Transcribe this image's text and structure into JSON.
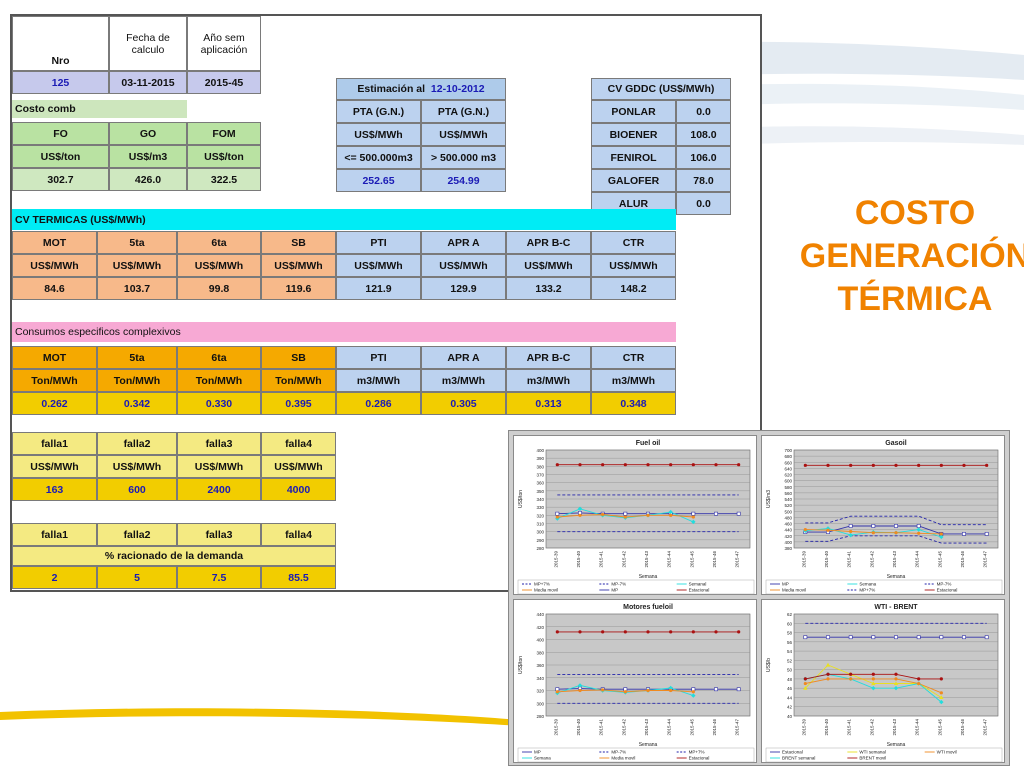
{
  "title": {
    "line1": "COSTO",
    "line2": "GENERACIÓN",
    "line3": "TÉRMICA"
  },
  "header": {
    "nro_label": "Nro",
    "fecha_label": "Fecha de calculo",
    "anio_label": "Año sem aplicación",
    "nro": "125",
    "fecha": "03-11-2015",
    "anio": "2015-45"
  },
  "costo_comb": {
    "label": "Costo comb",
    "headers": [
      "FO",
      "GO",
      "FOM"
    ],
    "units": [
      "US$/ton",
      "US$/m3",
      "US$/ton"
    ],
    "values": [
      "302.7",
      "426.0",
      "322.5"
    ]
  },
  "estimacion": {
    "label": "Estimación al",
    "date": "12-10-2012",
    "headers": [
      "PTA (G.N.)",
      "PTA (G.N.)"
    ],
    "units": [
      "US$/MWh",
      "US$/MWh"
    ],
    "ranges": [
      "<= 500.000m3",
      "> 500.000 m3"
    ],
    "values": [
      "252.65",
      "254.99"
    ]
  },
  "cv_gddc": {
    "label": "CV GDDC (US$/MWh)",
    "rows": [
      {
        "name": "PONLAR",
        "value": "0.0"
      },
      {
        "name": "BIOENER",
        "value": "108.0"
      },
      {
        "name": "FENIROL",
        "value": "106.0"
      },
      {
        "name": "GALOFER",
        "value": "78.0"
      },
      {
        "name": "ALUR",
        "value": "0.0"
      }
    ]
  },
  "cv_termicas": {
    "label": "CV TERMICAS (US$/MWh)",
    "headers": [
      "MOT",
      "5ta",
      "6ta",
      "SB",
      "PTI",
      "APR A",
      "APR B-C",
      "CTR"
    ],
    "units": [
      "US$/MWh",
      "US$/MWh",
      "US$/MWh",
      "US$/MWh",
      "US$/MWh",
      "US$/MWh",
      "US$/MWh",
      "US$/MWh"
    ],
    "values": [
      "84.6",
      "103.7",
      "99.8",
      "119.6",
      "121.9",
      "129.9",
      "133.2",
      "148.2"
    ]
  },
  "consumos": {
    "label": "Consumos especificos complexivos",
    "headers": [
      "MOT",
      "5ta",
      "6ta",
      "SB",
      "PTI",
      "APR A",
      "APR B-C",
      "CTR"
    ],
    "units": [
      "Ton/MWh",
      "Ton/MWh",
      "Ton/MWh",
      "Ton/MWh",
      "m3/MWh",
      "m3/MWh",
      "m3/MWh",
      "m3/MWh"
    ],
    "values": [
      "0.262",
      "0.342",
      "0.330",
      "0.395",
      "0.286",
      "0.305",
      "0.313",
      "0.348"
    ]
  },
  "falla_costos": {
    "headers": [
      "falla1",
      "falla2",
      "falla3",
      "falla4"
    ],
    "units": [
      "US$/MWh",
      "US$/MWh",
      "US$/MWh",
      "US$/MWh"
    ],
    "values": [
      "163",
      "600",
      "2400",
      "4000"
    ]
  },
  "falla_racionado": {
    "headers": [
      "falla1",
      "falla2",
      "falla3",
      "falla4"
    ],
    "label": "% racionado de la demanda",
    "values": [
      "2",
      "5",
      "7.5",
      "85.5"
    ]
  },
  "colors": {
    "title": "#f08200",
    "mp": "#3333aa",
    "mp_band": "#2222aa",
    "semanal": "#22dddd",
    "media_movil": "#f08a20",
    "estacional": "#aa1111",
    "wti_semanal": "#e8e020"
  },
  "chart_data": [
    {
      "type": "line",
      "title": "Fuel oil",
      "ylabel": "US$/ton",
      "xlabel": "Semana",
      "categories": [
        "2015-39",
        "2015-40",
        "2015-41",
        "2015-42",
        "2015-43",
        "2015-44",
        "2015-45",
        "2015-46",
        "2015-47"
      ],
      "ylim": [
        280,
        400
      ],
      "yticks": [
        280,
        290,
        300,
        310,
        320,
        330,
        340,
        350,
        360,
        370,
        380,
        390,
        400
      ],
      "grid": true,
      "series": [
        {
          "name": "MP",
          "color": "#3333aa",
          "style": "solid-square",
          "values": [
            322,
            323,
            322,
            322,
            322,
            322,
            322,
            322,
            322
          ]
        },
        {
          "name": "MP-7%",
          "color": "#2222aa",
          "style": "dashed",
          "values": [
            300,
            300,
            300,
            300,
            300,
            300,
            300,
            300,
            300
          ]
        },
        {
          "name": "MP+7%",
          "color": "#2222aa",
          "style": "dashed",
          "values": [
            345,
            345,
            345,
            345,
            345,
            345,
            345,
            345,
            345
          ]
        },
        {
          "name": "Semanal",
          "color": "#22dddd",
          "style": "solid-diamond",
          "values": [
            316,
            328,
            320,
            317,
            320,
            324,
            312,
            null,
            null
          ]
        },
        {
          "name": "Media movil",
          "color": "#f08a20",
          "style": "solid-dot",
          "values": [
            318,
            320,
            321,
            318,
            320,
            320,
            318,
            null,
            null
          ]
        },
        {
          "name": "Estacional",
          "color": "#aa1111",
          "style": "solid-dot",
          "values": [
            382,
            382,
            382,
            382,
            382,
            382,
            382,
            382,
            382
          ]
        }
      ],
      "legend": "bottom",
      "legend_entries": [
        "MP+7%",
        "MP-7%",
        "Semanal",
        "Media movil",
        "MP",
        "Estacional"
      ]
    },
    {
      "type": "line",
      "title": "Gasoil",
      "ylabel": "US$/m3",
      "xlabel": "Semana",
      "categories": [
        "2015-39",
        "2015-40",
        "2015-41",
        "2015-42",
        "2015-43",
        "2015-44",
        "2015-45",
        "2015-46",
        "2015-47"
      ],
      "ylim": [
        380,
        700
      ],
      "yticks": [
        380,
        400,
        420,
        440,
        460,
        480,
        500,
        520,
        540,
        560,
        580,
        600,
        620,
        640,
        660,
        680,
        700
      ],
      "grid": true,
      "series": [
        {
          "name": "MP",
          "color": "#3333aa",
          "style": "solid-square",
          "values": [
            432,
            432,
            452,
            452,
            452,
            452,
            426,
            426,
            426
          ]
        },
        {
          "name": "MP-7%",
          "color": "#2222aa",
          "style": "dashed",
          "values": [
            402,
            402,
            420,
            420,
            420,
            420,
            396,
            396,
            396
          ]
        },
        {
          "name": "MP+7%",
          "color": "#2222aa",
          "style": "dashed",
          "values": [
            462,
            462,
            484,
            484,
            484,
            484,
            456,
            456,
            456
          ]
        },
        {
          "name": "Semana",
          "color": "#22dddd",
          "style": "solid-diamond",
          "values": [
            436,
            444,
            422,
            432,
            430,
            440,
            416,
            null,
            null
          ]
        },
        {
          "name": "Media movil",
          "color": "#f08a20",
          "style": "solid-dot",
          "values": [
            440,
            438,
            434,
            430,
            430,
            428,
            426,
            null,
            null
          ]
        },
        {
          "name": "Estacional",
          "color": "#aa1111",
          "style": "solid-dot",
          "values": [
            650,
            650,
            650,
            650,
            650,
            650,
            650,
            650,
            650
          ]
        }
      ],
      "legend": "bottom",
      "legend_entries": [
        "MP",
        "Semana",
        "MP-7%",
        "Media movil",
        "MP+7%",
        "Estacional"
      ]
    },
    {
      "type": "line",
      "title": "Motores fueloil",
      "ylabel": "US$/ton",
      "xlabel": "Semana",
      "categories": [
        "2015-39",
        "2015-40",
        "2015-41",
        "2015-42",
        "2015-43",
        "2015-44",
        "2015-45",
        "2015-46",
        "2015-47"
      ],
      "ylim": [
        280,
        440
      ],
      "yticks": [
        280,
        300,
        320,
        340,
        360,
        380,
        400,
        420,
        440
      ],
      "grid": true,
      "series": [
        {
          "name": "MP",
          "color": "#3333aa",
          "style": "solid-square",
          "values": [
            322,
            323,
            322,
            322,
            322,
            322,
            322,
            322,
            322
          ]
        },
        {
          "name": "MP-7%",
          "color": "#2222aa",
          "style": "dashed",
          "values": [
            300,
            300,
            300,
            300,
            300,
            300,
            300,
            300,
            300
          ]
        },
        {
          "name": "MP+7%",
          "color": "#2222aa",
          "style": "dashed",
          "values": [
            345,
            345,
            345,
            345,
            345,
            345,
            345,
            345,
            345
          ]
        },
        {
          "name": "Semana",
          "color": "#22dddd",
          "style": "solid-diamond",
          "values": [
            316,
            328,
            320,
            317,
            320,
            324,
            312,
            null,
            null
          ]
        },
        {
          "name": "Media movil",
          "color": "#f08a20",
          "style": "solid-dot",
          "values": [
            318,
            320,
            321,
            318,
            320,
            320,
            318,
            null,
            null
          ]
        },
        {
          "name": "Estacional",
          "color": "#aa1111",
          "style": "solid-dot",
          "values": [
            412,
            412,
            412,
            412,
            412,
            412,
            412,
            412,
            412
          ]
        }
      ],
      "legend": "bottom",
      "legend_entries": [
        "MP",
        "MP-7%",
        "MP+7%",
        "Semana",
        "Media movil",
        "Estacional"
      ]
    },
    {
      "type": "line",
      "title": "WTI - BRENT",
      "ylabel": "US$/b",
      "xlabel": "Semana",
      "categories": [
        "2015-39",
        "2015-40",
        "2015-41",
        "2015-42",
        "2015-43",
        "2015-44",
        "2015-45",
        "2015-46",
        "2015-47"
      ],
      "ylim": [
        40,
        62
      ],
      "yticks": [
        40,
        42,
        44,
        46,
        48,
        50,
        52,
        54,
        56,
        58,
        60,
        62
      ],
      "grid": true,
      "series": [
        {
          "name": "Estacional",
          "color": "#3333aa",
          "style": "solid-square",
          "values": [
            57,
            57,
            57,
            57,
            57,
            57,
            57,
            57,
            57
          ]
        },
        {
          "name": "WTI semanal",
          "color": "#e8e020",
          "style": "solid-triangle",
          "values": [
            46,
            51,
            49,
            47,
            47,
            47,
            44,
            null,
            null
          ]
        },
        {
          "name": "BRENT semanal",
          "color": "#22dddd",
          "style": "solid-diamond",
          "values": [
            48,
            49,
            48,
            46,
            46,
            47,
            43,
            null,
            null
          ]
        },
        {
          "name": "WTI movil",
          "color": "#f08a20",
          "style": "solid-dot",
          "values": [
            47,
            48,
            48,
            48,
            48,
            47,
            45,
            null,
            null
          ]
        },
        {
          "name": "BRENT movil",
          "color": "#aa1111",
          "style": "solid-dot",
          "values": [
            48,
            49,
            49,
            49,
            49,
            48,
            48,
            null,
            null
          ]
        },
        {
          "name": "Estacional+",
          "color": "#2222aa",
          "style": "dashed",
          "values": [
            60,
            60,
            60,
            60,
            60,
            60,
            60,
            60,
            60
          ]
        }
      ],
      "legend": "bottom",
      "legend_entries": [
        "Estacional",
        "WTI semanal",
        "WTI movil",
        "BRENT semanal",
        "BRENT movil"
      ]
    }
  ]
}
